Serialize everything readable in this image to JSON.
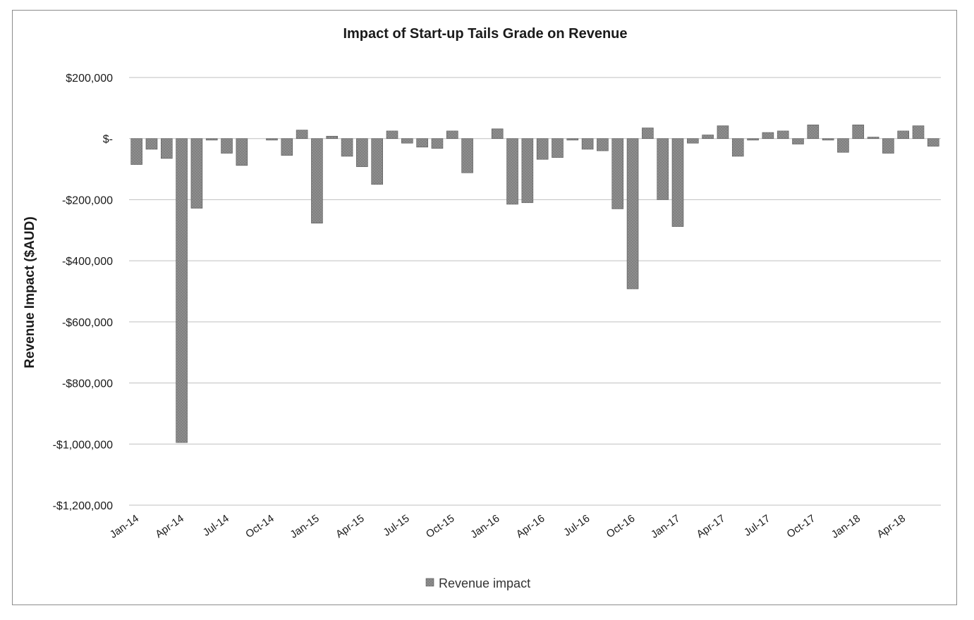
{
  "chart_data": {
    "type": "bar",
    "title": "Impact of Start-up Tails Grade on Revenue",
    "xlabel": "",
    "ylabel": "Revenue Impact ($AUD)",
    "ylim": [
      -1200000,
      200000
    ],
    "yticks": [
      200000,
      0,
      -200000,
      -400000,
      -600000,
      -800000,
      -1000000,
      -1200000
    ],
    "ytick_labels": [
      "$200,000",
      "$-",
      "-$200,000",
      "-$400,000",
      "-$600,000",
      "-$800,000",
      "-$1,000,000",
      "-$1,200,000"
    ],
    "grid": true,
    "legend_position": "bottom",
    "categories": [
      "Jan-14",
      "Feb-14",
      "Mar-14",
      "Apr-14",
      "May-14",
      "Jun-14",
      "Jul-14",
      "Aug-14",
      "Sep-14",
      "Oct-14",
      "Nov-14",
      "Dec-14",
      "Jan-15",
      "Feb-15",
      "Mar-15",
      "Apr-15",
      "May-15",
      "Jun-15",
      "Jul-15",
      "Aug-15",
      "Sep-15",
      "Oct-15",
      "Nov-15",
      "Dec-15",
      "Jan-16",
      "Feb-16",
      "Mar-16",
      "Apr-16",
      "May-16",
      "Jun-16",
      "Jul-16",
      "Aug-16",
      "Sep-16",
      "Oct-16",
      "Nov-16",
      "Dec-16",
      "Jan-17",
      "Feb-17",
      "Mar-17",
      "Apr-17",
      "May-17",
      "Jun-17",
      "Jul-17",
      "Aug-17",
      "Sep-17",
      "Oct-17",
      "Nov-17",
      "Dec-17",
      "Jan-18",
      "Feb-18",
      "Mar-18",
      "Apr-18",
      "May-18",
      "Jun-18"
    ],
    "xtick_labels": [
      "Jan-14",
      "Apr-14",
      "Jul-14",
      "Oct-14",
      "Jan-15",
      "Apr-15",
      "Jul-15",
      "Oct-15",
      "Jan-16",
      "Apr-16",
      "Jul-16",
      "Oct-16",
      "Jan-17",
      "Apr-17",
      "Jul-17",
      "Oct-17",
      "Jan-18",
      "Apr-18"
    ],
    "series": [
      {
        "name": "Revenue  impact",
        "color": "#7f7f7f",
        "values": [
          -85000,
          -35000,
          -65000,
          -995000,
          -228000,
          -5000,
          -48000,
          -88000,
          0,
          -5000,
          -55000,
          28000,
          -277000,
          8000,
          -58000,
          -92000,
          -150000,
          25000,
          -15000,
          -28000,
          -32000,
          25000,
          -112000,
          0,
          32000,
          -215000,
          -210000,
          -68000,
          -62000,
          -5000,
          -35000,
          -40000,
          -230000,
          -492000,
          35000,
          -200000,
          -288000,
          -15000,
          12000,
          42000,
          -58000,
          -5000,
          20000,
          25000,
          -18000,
          45000,
          -5000,
          -45000,
          45000,
          5000,
          -48000,
          25000,
          42000,
          -25000
        ]
      }
    ]
  }
}
